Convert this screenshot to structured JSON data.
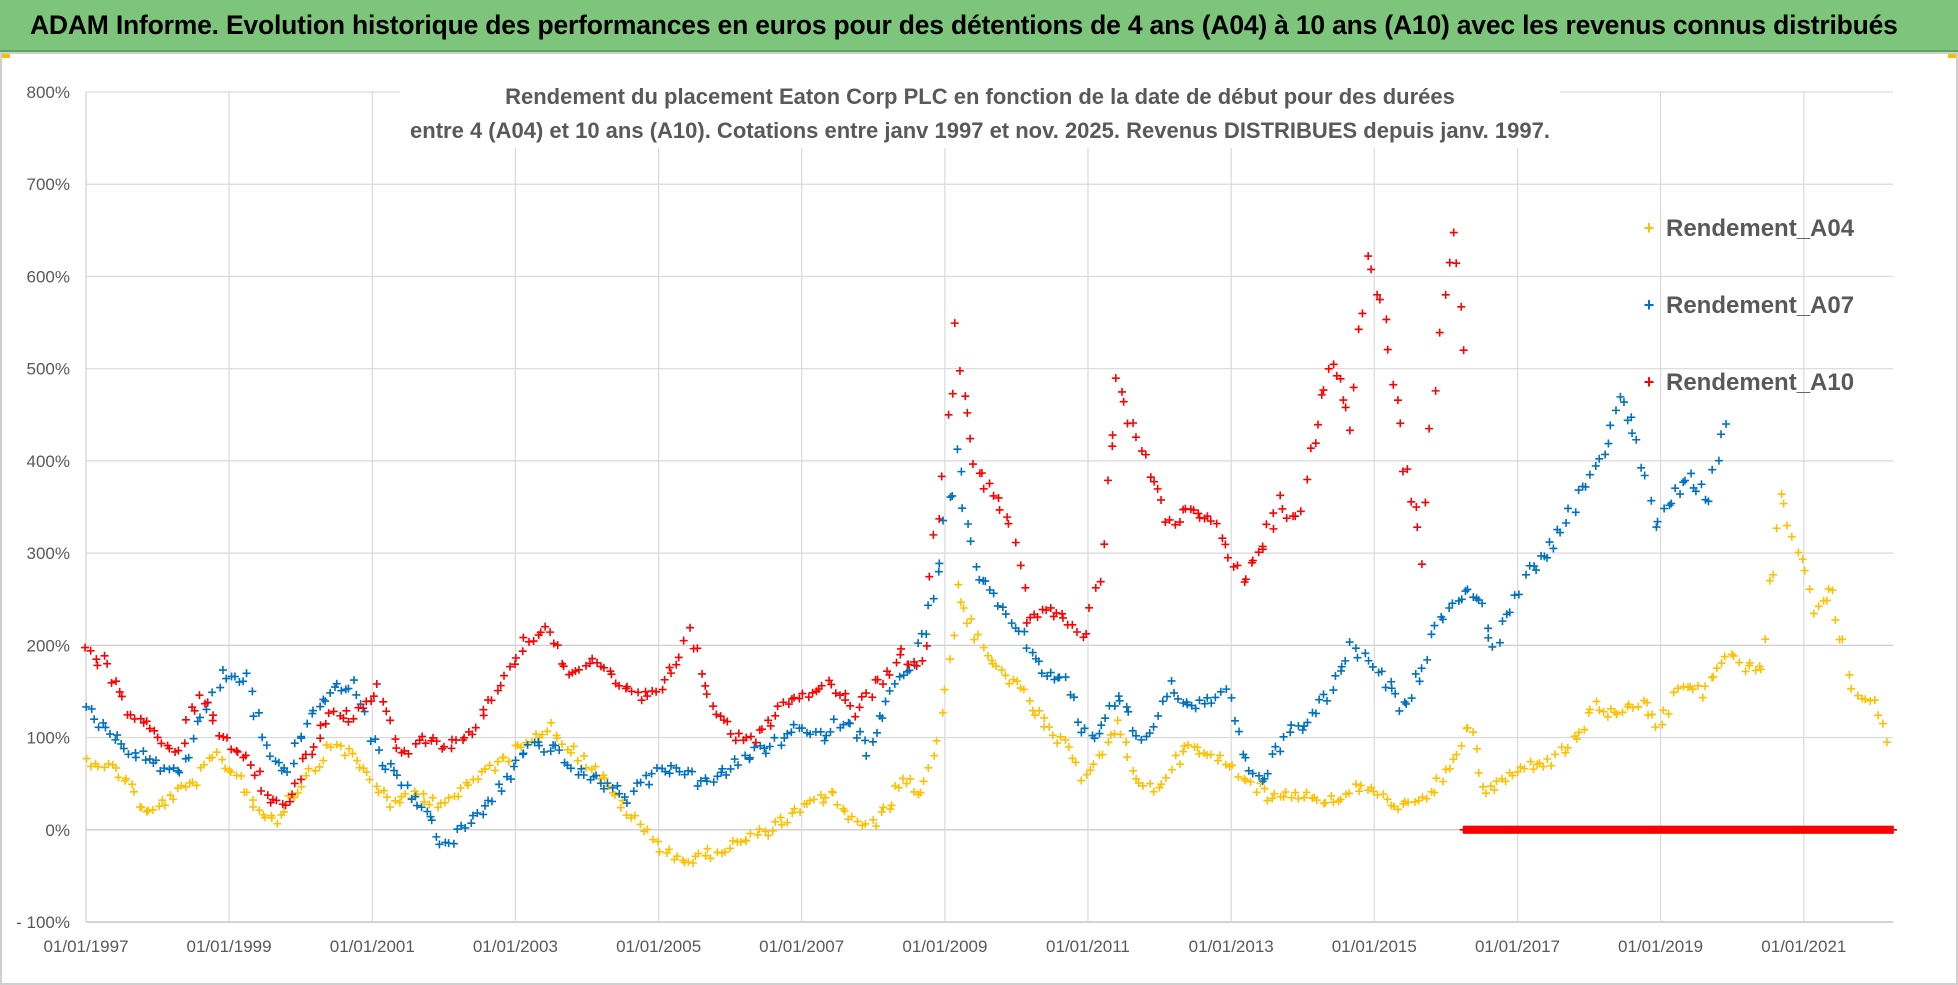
{
  "header": {
    "banner_text": "ADAM Informe. Evolution historique des performances en euros pour des détentions de 4 ans (A04) à 10 ans (A10) avec les revenus connus distribués"
  },
  "chart_data": {
    "type": "scatter",
    "title_line1": "Rendement du placement Eaton Corp PLC en fonction de la date de début pour des durées",
    "title_line2": "entre 4 (A04) et 10 ans (A10).  Cotations entre janv 1997 et nov. 2025. Revenus DISTRIBUES depuis janv. 1997.",
    "marker": "+",
    "xlim": [
      "1997-01-01",
      "2022-04-01"
    ],
    "ylim": [
      -100,
      800
    ],
    "y_ticks": [
      -100,
      0,
      100,
      200,
      300,
      400,
      500,
      600,
      700,
      800
    ],
    "y_tick_labels": [
      "- 100%",
      "0%",
      "100%",
      "200%",
      "300%",
      "400%",
      "500%",
      "600%",
      "700%",
      "800%"
    ],
    "x_tick_labels": [
      "01/01/1997",
      "01/01/1999",
      "01/01/2001",
      "01/01/2003",
      "01/01/2005",
      "01/01/2007",
      "01/01/2009",
      "01/01/2011",
      "01/01/2013",
      "01/01/2015",
      "01/01/2017",
      "01/01/2019",
      "01/01/2021"
    ],
    "grid": true,
    "legend_position": "right",
    "series": [
      {
        "name": "Rendement_A04",
        "color": "#ffc000",
        "points": [
          [
            "1997-01-01",
            75
          ],
          [
            "1997-04-01",
            72
          ],
          [
            "1997-08-01",
            55
          ],
          [
            "1997-11-01",
            15
          ],
          [
            "1998-03-01",
            35
          ],
          [
            "1998-07-01",
            50
          ],
          [
            "1998-11-01",
            80
          ],
          [
            "1999-03-01",
            55
          ],
          [
            "1999-06-01",
            20
          ],
          [
            "1999-09-01",
            12
          ],
          [
            "1999-12-01",
            40
          ],
          [
            "2000-04-01",
            75
          ],
          [
            "2000-07-01",
            95
          ],
          [
            "2000-11-01",
            70
          ],
          [
            "2001-02-01",
            45
          ],
          [
            "2001-05-01",
            25
          ],
          [
            "2001-08-01",
            40
          ],
          [
            "2001-12-01",
            30
          ],
          [
            "2002-04-01",
            40
          ],
          [
            "2002-08-01",
            65
          ],
          [
            "2002-12-01",
            80
          ],
          [
            "2003-03-01",
            100
          ],
          [
            "2003-07-01",
            110
          ],
          [
            "2003-11-01",
            85
          ],
          [
            "2004-03-01",
            60
          ],
          [
            "2004-06-01",
            35
          ],
          [
            "2004-09-01",
            10
          ],
          [
            "2004-12-01",
            -10
          ],
          [
            "2005-03-01",
            -25
          ],
          [
            "2005-06-01",
            -35
          ],
          [
            "2005-10-01",
            -25
          ],
          [
            "2006-02-01",
            -15
          ],
          [
            "2006-06-01",
            -5
          ],
          [
            "2006-10-01",
            10
          ],
          [
            "2007-02-01",
            25
          ],
          [
            "2007-06-01",
            40
          ],
          [
            "2007-09-01",
            15
          ],
          [
            "2007-12-01",
            0
          ],
          [
            "2008-03-01",
            20
          ],
          [
            "2008-06-01",
            55
          ],
          [
            "2008-09-01",
            40
          ],
          [
            "2008-11-01",
            80
          ],
          [
            "2009-01-01",
            150
          ],
          [
            "2009-03-01",
            260
          ],
          [
            "2009-05-01",
            230
          ],
          [
            "2009-08-01",
            185
          ],
          [
            "2009-11-01",
            170
          ],
          [
            "2010-03-01",
            140
          ],
          [
            "2010-06-01",
            110
          ],
          [
            "2010-09-01",
            90
          ],
          [
            "2010-12-01",
            60
          ],
          [
            "2011-03-01",
            80
          ],
          [
            "2011-06-01",
            110
          ],
          [
            "2011-09-01",
            60
          ],
          [
            "2011-12-01",
            40
          ],
          [
            "2012-03-01",
            70
          ],
          [
            "2012-06-01",
            90
          ],
          [
            "2012-09-01",
            80
          ],
          [
            "2012-12-01",
            75
          ],
          [
            "2013-03-01",
            60
          ],
          [
            "2013-07-01",
            35
          ],
          [
            "2013-11-01",
            40
          ],
          [
            "2014-03-01",
            35
          ],
          [
            "2014-07-01",
            30
          ],
          [
            "2014-11-01",
            50
          ],
          [
            "2015-03-01",
            30
          ],
          [
            "2015-07-01",
            25
          ],
          [
            "2015-11-01",
            40
          ],
          [
            "2016-02-01",
            80
          ],
          [
            "2016-05-01",
            110
          ],
          [
            "2016-08-01",
            40
          ],
          [
            "2016-11-01",
            55
          ],
          [
            "2017-03-01",
            70
          ],
          [
            "2017-07-01",
            75
          ],
          [
            "2017-11-01",
            100
          ],
          [
            "2018-02-01",
            135
          ],
          [
            "2018-06-01",
            120
          ],
          [
            "2018-10-01",
            140
          ],
          [
            "2019-01-01",
            110
          ],
          [
            "2019-04-01",
            155
          ],
          [
            "2019-08-01",
            150
          ],
          [
            "2019-12-01",
            190
          ],
          [
            "2020-03-01",
            175
          ],
          [
            "2020-06-01",
            180
          ],
          [
            "2020-09-01",
            360
          ],
          [
            "2020-12-01",
            310
          ],
          [
            "2021-03-01",
            235
          ],
          [
            "2021-06-01",
            260
          ],
          [
            "2021-09-01",
            150
          ],
          [
            "2021-12-01",
            145
          ],
          [
            "2022-03-01",
            95
          ]
        ]
      },
      {
        "name": "Rendement_A07",
        "color": "#0070c0",
        "points": [
          [
            "1997-01-01",
            130
          ],
          [
            "1997-05-01",
            105
          ],
          [
            "1997-09-01",
            85
          ],
          [
            "1998-01-01",
            70
          ],
          [
            "1998-05-01",
            65
          ],
          [
            "1998-09-01",
            130
          ],
          [
            "1998-12-01",
            170
          ],
          [
            "1999-04-01",
            160
          ],
          [
            "1999-08-01",
            80
          ],
          [
            "1999-11-01",
            60
          ],
          [
            "2000-02-01",
            120
          ],
          [
            "2000-06-01",
            150
          ],
          [
            "2000-10-01",
            160
          ],
          [
            "2001-02-01",
            80
          ],
          [
            "2001-06-01",
            50
          ],
          [
            "2001-10-01",
            20
          ],
          [
            "2002-01-01",
            -20
          ],
          [
            "2002-04-01",
            0
          ],
          [
            "2002-08-01",
            25
          ],
          [
            "2002-12-01",
            60
          ],
          [
            "2003-04-01",
            95
          ],
          [
            "2003-08-01",
            85
          ],
          [
            "2003-12-01",
            60
          ],
          [
            "2004-04-01",
            50
          ],
          [
            "2004-08-01",
            35
          ],
          [
            "2004-12-01",
            60
          ],
          [
            "2005-04-01",
            70
          ],
          [
            "2005-08-01",
            50
          ],
          [
            "2005-12-01",
            60
          ],
          [
            "2006-04-01",
            80
          ],
          [
            "2006-08-01",
            90
          ],
          [
            "2006-12-01",
            110
          ],
          [
            "2007-04-01",
            100
          ],
          [
            "2007-08-01",
            120
          ],
          [
            "2007-12-01",
            90
          ],
          [
            "2008-04-01",
            150
          ],
          [
            "2008-08-01",
            180
          ],
          [
            "2008-11-01",
            250
          ],
          [
            "2009-03-01",
            400
          ],
          [
            "2009-06-01",
            280
          ],
          [
            "2009-09-01",
            250
          ],
          [
            "2009-12-01",
            230
          ],
          [
            "2010-03-01",
            200
          ],
          [
            "2010-06-01",
            170
          ],
          [
            "2010-09-01",
            160
          ],
          [
            "2010-12-01",
            110
          ],
          [
            "2011-03-01",
            100
          ],
          [
            "2011-06-01",
            150
          ],
          [
            "2011-09-01",
            100
          ],
          [
            "2011-12-01",
            110
          ],
          [
            "2012-03-01",
            160
          ],
          [
            "2012-06-01",
            130
          ],
          [
            "2012-09-01",
            140
          ],
          [
            "2012-12-01",
            150
          ],
          [
            "2013-03-01",
            80
          ],
          [
            "2013-06-01",
            50
          ],
          [
            "2013-10-01",
            100
          ],
          [
            "2014-02-01",
            120
          ],
          [
            "2014-06-01",
            150
          ],
          [
            "2014-09-01",
            200
          ],
          [
            "2014-12-01",
            180
          ],
          [
            "2015-03-01",
            160
          ],
          [
            "2015-06-01",
            130
          ],
          [
            "2015-09-01",
            180
          ],
          [
            "2015-12-01",
            230
          ],
          [
            "2016-03-01",
            250
          ],
          [
            "2016-06-01",
            260
          ],
          [
            "2016-09-01",
            200
          ],
          [
            "2016-12-01",
            240
          ],
          [
            "2017-03-01",
            280
          ],
          [
            "2017-06-01",
            300
          ],
          [
            "2017-09-01",
            330
          ],
          [
            "2017-12-01",
            370
          ],
          [
            "2018-03-01",
            400
          ],
          [
            "2018-06-01",
            470
          ],
          [
            "2018-09-01",
            420
          ],
          [
            "2018-12-01",
            330
          ],
          [
            "2019-03-01",
            360
          ],
          [
            "2019-06-01",
            380
          ],
          [
            "2019-09-01",
            360
          ],
          [
            "2019-12-01",
            440
          ]
        ]
      },
      {
        "name": "Rendement_A10",
        "color": "#ff0000",
        "points": [
          [
            "1997-01-01",
            200
          ],
          [
            "1997-04-01",
            180
          ],
          [
            "1997-08-01",
            130
          ],
          [
            "1997-12-01",
            110
          ],
          [
            "1998-04-01",
            80
          ],
          [
            "1998-08-01",
            150
          ],
          [
            "1998-12-01",
            100
          ],
          [
            "1999-04-01",
            80
          ],
          [
            "1999-08-01",
            30
          ],
          [
            "1999-11-01",
            30
          ],
          [
            "2000-02-01",
            80
          ],
          [
            "2000-06-01",
            130
          ],
          [
            "2000-10-01",
            120
          ],
          [
            "2001-02-01",
            150
          ],
          [
            "2001-06-01",
            80
          ],
          [
            "2001-10-01",
            100
          ],
          [
            "2002-02-01",
            90
          ],
          [
            "2002-06-01",
            110
          ],
          [
            "2002-10-01",
            150
          ],
          [
            "2003-02-01",
            200
          ],
          [
            "2003-06-01",
            220
          ],
          [
            "2003-10-01",
            170
          ],
          [
            "2004-02-01",
            180
          ],
          [
            "2004-06-01",
            160
          ],
          [
            "2004-10-01",
            140
          ],
          [
            "2005-02-01",
            160
          ],
          [
            "2005-06-01",
            210
          ],
          [
            "2005-10-01",
            140
          ],
          [
            "2006-02-01",
            100
          ],
          [
            "2006-06-01",
            100
          ],
          [
            "2006-10-01",
            140
          ],
          [
            "2007-02-01",
            150
          ],
          [
            "2007-06-01",
            160
          ],
          [
            "2007-10-01",
            130
          ],
          [
            "2008-02-01",
            160
          ],
          [
            "2008-06-01",
            190
          ],
          [
            "2008-09-01",
            170
          ],
          [
            "2008-12-01",
            350
          ],
          [
            "2009-03-01",
            540
          ],
          [
            "2009-06-01",
            400
          ],
          [
            "2009-09-01",
            360
          ],
          [
            "2009-12-01",
            340
          ],
          [
            "2010-03-01",
            230
          ],
          [
            "2010-06-01",
            240
          ],
          [
            "2010-09-01",
            230
          ],
          [
            "2010-12-01",
            200
          ],
          [
            "2011-03-01",
            280
          ],
          [
            "2011-06-01",
            480
          ],
          [
            "2011-09-01",
            420
          ],
          [
            "2011-12-01",
            380
          ],
          [
            "2012-03-01",
            330
          ],
          [
            "2012-06-01",
            350
          ],
          [
            "2012-09-01",
            340
          ],
          [
            "2012-12-01",
            310
          ],
          [
            "2013-03-01",
            270
          ],
          [
            "2013-06-01",
            300
          ],
          [
            "2013-09-01",
            360
          ],
          [
            "2013-12-01",
            330
          ],
          [
            "2014-03-01",
            430
          ],
          [
            "2014-06-01",
            510
          ],
          [
            "2014-09-01",
            450
          ],
          [
            "2014-12-01",
            620
          ],
          [
            "2015-03-01",
            560
          ],
          [
            "2015-06-01",
            400
          ],
          [
            "2015-09-01",
            310
          ],
          [
            "2015-12-01",
            550
          ],
          [
            "2016-02-01",
            640
          ],
          [
            "2016-04-01",
            520
          ]
        ]
      },
      {
        "name": "Rendement_A10",
        "color": "#ff0000",
        "points": [
          [
            "2016-04-01",
            0
          ],
          [
            "2022-04-01",
            0
          ]
        ]
      }
    ]
  }
}
